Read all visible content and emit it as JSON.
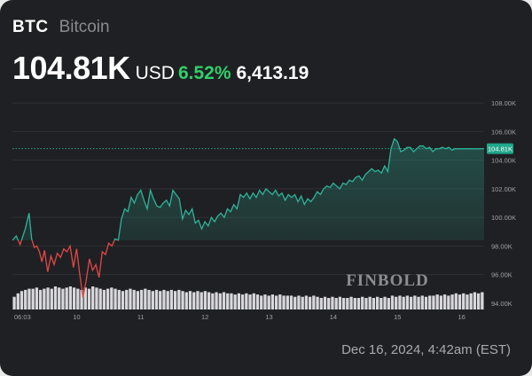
{
  "header": {
    "ticker": "BTC",
    "name": "Bitcoin",
    "price": "104.81K",
    "currency": "USD",
    "change_percent": "6.52%",
    "change_value": "6,413.19"
  },
  "timestamp": "Dec 16, 2024, 4:42am (EST)",
  "watermark": "FINBOLD",
  "colors": {
    "background": "#1f2023",
    "up": "#2fb39a",
    "down": "#e04848",
    "change_text": "#2fd06a",
    "volume": "#d8d8dc",
    "current_marker": "#20a78a"
  },
  "chart_data": {
    "type": "line",
    "x_ticks": [
      "06:03",
      "10",
      "11",
      "12",
      "13",
      "14",
      "15",
      "16"
    ],
    "y_ticks": [
      "108.00K",
      "106.00K",
      "104.00K",
      "102.00K",
      "100.00K",
      "98.00K",
      "96.00K",
      "94.00K"
    ],
    "ylim": [
      93.5,
      109
    ],
    "current_label": "104.81K",
    "current_value": 104.81,
    "baseline_value": 98.4,
    "series": [
      {
        "x": [
          0,
          0.06,
          0.12,
          0.2,
          0.26,
          0.3,
          0.34,
          0.38,
          0.42,
          0.46,
          0.5,
          0.55,
          0.6,
          0.65,
          0.7,
          0.75,
          0.8,
          0.85,
          0.9,
          0.95,
          1.0,
          1.05,
          1.1,
          1.15,
          1.2,
          1.25,
          1.3,
          1.35,
          1.4,
          1.45,
          1.5,
          1.55,
          1.6,
          1.65,
          1.7,
          1.75,
          1.8,
          1.85,
          1.9,
          1.95,
          2.0,
          2.05,
          2.1,
          2.15,
          2.2,
          2.25,
          2.3,
          2.35,
          2.4,
          2.45,
          2.5,
          2.55,
          2.6,
          2.65,
          2.7,
          2.75,
          2.8,
          2.85,
          2.9,
          2.95,
          3.0,
          3.05,
          3.1,
          3.15,
          3.2,
          3.25,
          3.3,
          3.35,
          3.4,
          3.45,
          3.5,
          3.55,
          3.6,
          3.65,
          3.7,
          3.75,
          3.8,
          3.85,
          3.9,
          3.95,
          4.0,
          4.05,
          4.1,
          4.15,
          4.2,
          4.25,
          4.3,
          4.35,
          4.4,
          4.45,
          4.5,
          4.55,
          4.6,
          4.65,
          4.7,
          4.75,
          4.8,
          4.85,
          4.9,
          4.95,
          5.0,
          5.05,
          5.1,
          5.15,
          5.2,
          5.25,
          5.3,
          5.35,
          5.4,
          5.45,
          5.5,
          5.55,
          5.6,
          5.65,
          5.7,
          5.75,
          5.8,
          5.85,
          5.9,
          5.95,
          6.0,
          6.05,
          6.1,
          6.15,
          6.2,
          6.25,
          6.3,
          6.35,
          6.4,
          6.45,
          6.5,
          6.55,
          6.6,
          6.65,
          6.7,
          6.75,
          6.8,
          6.85,
          6.9,
          6.95,
          7.0,
          7.05,
          7.1,
          7.15,
          7.2,
          7.25,
          7.3,
          7.35
        ],
        "values": [
          98.4,
          98.7,
          98.1,
          99.2,
          100.3,
          98.5,
          97.9,
          98.0,
          97.6,
          96.9,
          97.7,
          96.2,
          97.3,
          96.7,
          97.5,
          97.2,
          97.8,
          97.6,
          98.0,
          96.5,
          97.8,
          96.0,
          94.4,
          95.6,
          97.1,
          96.3,
          96.7,
          95.8,
          97.6,
          97.4,
          98.2,
          98.0,
          98.5,
          98.4,
          99.9,
          100.6,
          100.4,
          101.4,
          101.0,
          101.6,
          101.9,
          101.2,
          100.6,
          101.9,
          101.3,
          100.8,
          100.7,
          101.0,
          101.2,
          100.8,
          101.9,
          101.6,
          101.3,
          99.9,
          100.5,
          100.2,
          100.6,
          99.6,
          99.8,
          99.2,
          99.7,
          99.4,
          100.0,
          99.7,
          100.1,
          100.3,
          100.0,
          100.6,
          100.4,
          100.9,
          100.6,
          101.6,
          101.4,
          101.7,
          101.3,
          101.7,
          101.4,
          101.9,
          101.6,
          102.0,
          101.8,
          101.6,
          101.9,
          101.5,
          101.7,
          101.2,
          101.6,
          101.4,
          101.6,
          101.1,
          101.5,
          100.9,
          101.3,
          101.1,
          101.4,
          101.8,
          101.6,
          102.0,
          102.2,
          102.1,
          102.4,
          102.2,
          102.0,
          102.4,
          102.3,
          102.6,
          102.5,
          102.8,
          102.9,
          102.6,
          103.0,
          103.2,
          103.4,
          103.2,
          103.3,
          103.1,
          103.6,
          103.2,
          104.8,
          105.5,
          105.3,
          104.6,
          104.7,
          104.9,
          104.9,
          104.6,
          104.8,
          105.0,
          105.0,
          104.8,
          104.9,
          104.6,
          104.8,
          104.8,
          104.9,
          104.8,
          104.9,
          104.7,
          104.8,
          104.8,
          104.8,
          104.8,
          104.8,
          104.8,
          104.8,
          104.8,
          104.8,
          104.81
        ]
      }
    ],
    "volume_levels": [
      0.55,
      0.7,
      0.8,
      0.85,
      0.9,
      0.9,
      0.95,
      0.85,
      0.9,
      0.95,
      0.9,
      1.0,
      0.95,
      0.9,
      0.95,
      1.0,
      0.95,
      0.9,
      0.85,
      0.95,
      0.9,
      1.0,
      0.95,
      0.9,
      0.85,
      0.9,
      0.95,
      0.9,
      0.85,
      0.8,
      0.85,
      0.9,
      0.85,
      0.8,
      0.85,
      0.9,
      0.85,
      0.8,
      0.85,
      0.8,
      0.85,
      0.8,
      0.85,
      0.8,
      0.85,
      0.8,
      0.75,
      0.8,
      0.75,
      0.8,
      0.75,
      0.8,
      0.75,
      0.7,
      0.75,
      0.7,
      0.75,
      0.7,
      0.7,
      0.65,
      0.7,
      0.65,
      0.7,
      0.65,
      0.7,
      0.65,
      0.6,
      0.65,
      0.6,
      0.65,
      0.6,
      0.65,
      0.6,
      0.6,
      0.6,
      0.55,
      0.6,
      0.55,
      0.6,
      0.55,
      0.6,
      0.55,
      0.5,
      0.55,
      0.5,
      0.55,
      0.5,
      0.55,
      0.5,
      0.5,
      0.55,
      0.5,
      0.5,
      0.55,
      0.5,
      0.55,
      0.5,
      0.55,
      0.5,
      0.55,
      0.5,
      0.6,
      0.55,
      0.6,
      0.55,
      0.6,
      0.55,
      0.6,
      0.55,
      0.6,
      0.55,
      0.6,
      0.6,
      0.65,
      0.6,
      0.65,
      0.6,
      0.65,
      0.7,
      0.65,
      0.7,
      0.65,
      0.7,
      0.75,
      0.7,
      0.75
    ]
  }
}
